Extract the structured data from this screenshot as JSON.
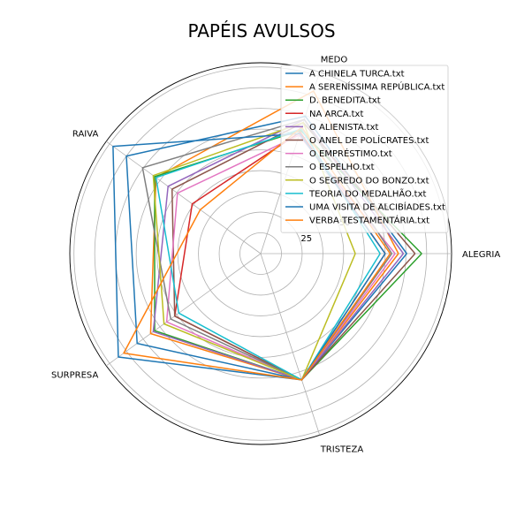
{
  "chart_data": {
    "type": "radar",
    "title": "PAPÉIS AVULSOS",
    "axes": [
      "ALEGRIA",
      "MEDO",
      "RAIVA",
      "SURPRESA",
      "TRISTEZA"
    ],
    "r_ticks": [
      25,
      50,
      75
    ],
    "r_max": 115,
    "grid": true,
    "legend_position": "top-right",
    "series": [
      {
        "name": "A CHINELA TURCA.txt",
        "color": "#1f77b4",
        "values": [
          88,
          87,
          100,
          92,
          80
        ]
      },
      {
        "name": "A SERENÍSSIMA REPÚBLICA.txt",
        "color": "#ff7f0e",
        "values": [
          83,
          103,
          78,
          82,
          80
        ]
      },
      {
        "name": "D. BENEDITA.txt",
        "color": "#2ca02c",
        "values": [
          97,
          78,
          79,
          79,
          80
        ]
      },
      {
        "name": "NA ARCA.txt",
        "color": "#d62728",
        "values": [
          75,
          77,
          51,
          64,
          80
        ]
      },
      {
        "name": "O ALIENISTA.txt",
        "color": "#9467bd",
        "values": [
          86,
          85,
          69,
          80,
          80
        ]
      },
      {
        "name": "O ANEL DE POLÍCRATES.txt",
        "color": "#8c564b",
        "values": [
          93,
          83,
          66,
          64,
          80
        ]
      },
      {
        "name": "O EMPRÉSTIMO.txt",
        "color": "#e377c2",
        "values": [
          81,
          75,
          62,
          70,
          80
        ]
      },
      {
        "name": "O ESPELHO.txt",
        "color": "#7f7f7f",
        "values": [
          79,
          85,
          88,
          67,
          80
        ]
      },
      {
        "name": "O SEGREDO DO BONZO.txt",
        "color": "#bcbd22",
        "values": [
          57,
          83,
          80,
          72,
          80
        ]
      },
      {
        "name": "TEORIA DO MEDALHÃO.txt",
        "color": "#17becf",
        "values": [
          72,
          79,
          78,
          61,
          80
        ]
      },
      {
        "name": "UMA VISITA DE ALCIBÍADES.txt",
        "color": "#1f77b4",
        "values": [
          75,
          76,
          110,
          106,
          80
        ]
      },
      {
        "name": "VERBA TESTAMENTÁRIA.txt",
        "color": "#ff7f0e",
        "values": [
          78,
          80,
          45,
          102,
          80
        ]
      }
    ]
  }
}
